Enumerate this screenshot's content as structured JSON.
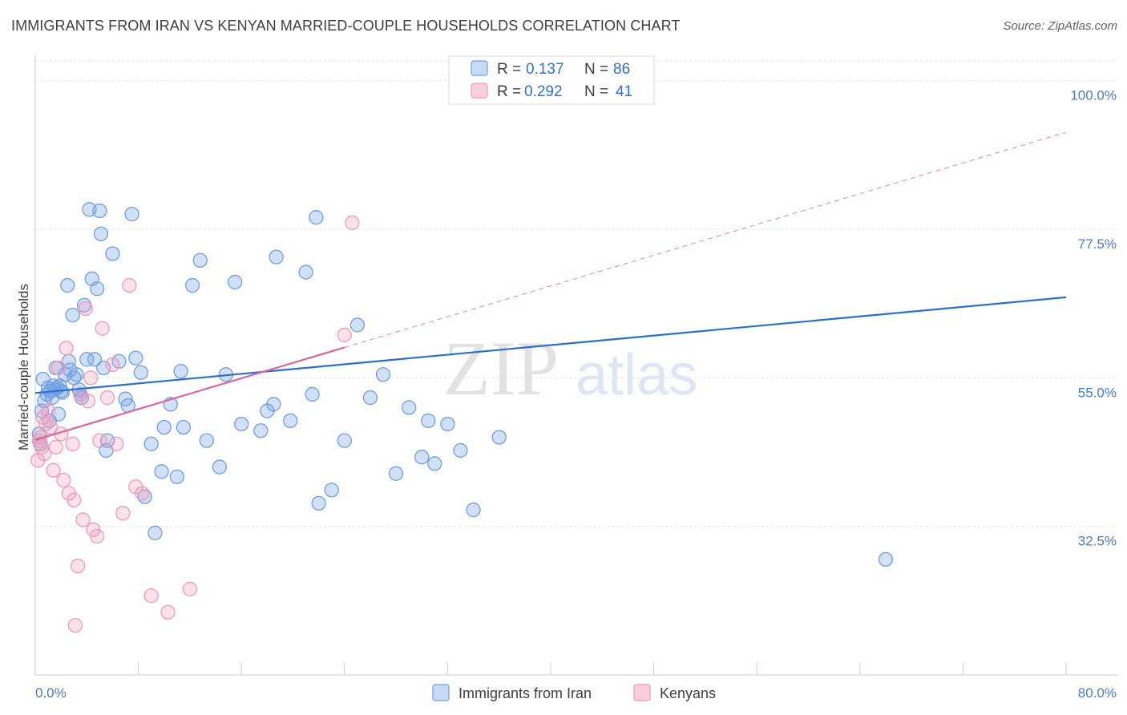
{
  "title": "IMMIGRANTS FROM IRAN VS KENYAN MARRIED-COUPLE HOUSEHOLDS CORRELATION CHART",
  "source": "Source: ZipAtlas.com",
  "watermark": {
    "zip": "ZIP",
    "atlas": "atlas"
  },
  "chart_data": {
    "type": "scatter",
    "title": "IMMIGRANTS FROM IRAN VS KENYAN MARRIED-COUPLE HOUSEHOLDS CORRELATION CHART",
    "xlabel": "",
    "ylabel": "Married-couple Households",
    "xlim": [
      0,
      80
    ],
    "ylim": [
      10,
      103
    ],
    "x_tick_labels": [
      "0.0%",
      "80.0%"
    ],
    "y_ticks": [
      32.5,
      55.0,
      77.5,
      100.0
    ],
    "y_tick_labels": [
      "32.5%",
      "55.0%",
      "77.5%",
      "100.0%"
    ],
    "grid": true,
    "legend": {
      "position": "top-center",
      "entries": [
        {
          "r_label": "R =",
          "r_value": "0.137",
          "n_label": "N =",
          "n_value": "86"
        },
        {
          "r_label": "R =",
          "r_value": "0.292",
          "n_label": "N =",
          "n_value": "41"
        }
      ]
    },
    "series": [
      {
        "name": "Immigrants from Iran",
        "color": "#6f9fe3",
        "line_color": "#2a6fd0",
        "trend": {
          "x": [
            0,
            80
          ],
          "y": [
            52.7,
            67.2
          ]
        },
        "points": [
          [
            0.3,
            46.5
          ],
          [
            0.4,
            45.0
          ],
          [
            0.5,
            50.0
          ],
          [
            0.6,
            54.8
          ],
          [
            0.7,
            51.5
          ],
          [
            0.9,
            52.5
          ],
          [
            1.0,
            53.5
          ],
          [
            1.1,
            48.5
          ],
          [
            1.2,
            53.0
          ],
          [
            1.3,
            52.0
          ],
          [
            1.4,
            53.8
          ],
          [
            1.5,
            53.2
          ],
          [
            1.6,
            56.5
          ],
          [
            1.7,
            53.5
          ],
          [
            1.8,
            49.5
          ],
          [
            1.9,
            53.8
          ],
          [
            2.0,
            53.0
          ],
          [
            2.1,
            52.8
          ],
          [
            2.3,
            55.5
          ],
          [
            2.5,
            69.0
          ],
          [
            2.6,
            57.5
          ],
          [
            2.7,
            56.2
          ],
          [
            2.9,
            64.5
          ],
          [
            3.0,
            55.0
          ],
          [
            3.2,
            55.5
          ],
          [
            3.4,
            53.2
          ],
          [
            3.6,
            52.0
          ],
          [
            3.8,
            66.0
          ],
          [
            4.0,
            57.8
          ],
          [
            4.2,
            80.5
          ],
          [
            4.4,
            70.0
          ],
          [
            4.6,
            57.8
          ],
          [
            4.8,
            68.5
          ],
          [
            5.0,
            80.3
          ],
          [
            5.1,
            76.8
          ],
          [
            5.3,
            56.5
          ],
          [
            5.5,
            44.0
          ],
          [
            5.6,
            45.5
          ],
          [
            6.0,
            73.8
          ],
          [
            6.5,
            57.5
          ],
          [
            7.0,
            51.8
          ],
          [
            7.2,
            50.8
          ],
          [
            7.5,
            79.8
          ],
          [
            7.8,
            58.0
          ],
          [
            8.2,
            55.8
          ],
          [
            8.5,
            37.0
          ],
          [
            9.0,
            45.0
          ],
          [
            9.3,
            31.5
          ],
          [
            9.8,
            40.8
          ],
          [
            10.5,
            51.0
          ],
          [
            11.0,
            40.0
          ],
          [
            11.3,
            56.0
          ],
          [
            11.5,
            47.5
          ],
          [
            12.2,
            69.0
          ],
          [
            12.8,
            72.8
          ],
          [
            13.3,
            45.5
          ],
          [
            14.3,
            41.5
          ],
          [
            14.8,
            55.5
          ],
          [
            15.5,
            69.5
          ],
          [
            16.0,
            48.0
          ],
          [
            17.5,
            47.0
          ],
          [
            18.0,
            50.0
          ],
          [
            18.7,
            73.3
          ],
          [
            19.8,
            48.5
          ],
          [
            21.0,
            71.0
          ],
          [
            21.5,
            52.5
          ],
          [
            22.0,
            36.0
          ],
          [
            23.0,
            38.0
          ],
          [
            24.0,
            45.5
          ],
          [
            25.0,
            63.0
          ],
          [
            26.0,
            52.0
          ],
          [
            27.0,
            55.5
          ],
          [
            28.0,
            40.5
          ],
          [
            29.0,
            50.5
          ],
          [
            30.0,
            43.0
          ],
          [
            31.0,
            42.0
          ],
          [
            32.0,
            48.0
          ],
          [
            33.0,
            44.0
          ],
          [
            34.0,
            35.0
          ],
          [
            36.0,
            46.0
          ],
          [
            18.5,
            51.0
          ],
          [
            30.5,
            48.5
          ],
          [
            66.0,
            27.5
          ],
          [
            3.5,
            52.5
          ],
          [
            10.0,
            47.5
          ],
          [
            21.8,
            79.3
          ]
        ]
      },
      {
        "name": "Kenyans",
        "color": "#f09ab8",
        "line_color": "#e0649a",
        "trend": {
          "x": [
            0,
            24
          ],
          "y": [
            45.6,
            59.6
          ]
        },
        "trend_dashed": {
          "x": [
            24,
            80
          ],
          "y": [
            59.6,
            92.2
          ]
        },
        "points": [
          [
            0.2,
            42.5
          ],
          [
            0.3,
            45.5
          ],
          [
            0.4,
            46.0
          ],
          [
            0.5,
            44.5
          ],
          [
            0.6,
            49.0
          ],
          [
            0.7,
            43.5
          ],
          [
            0.8,
            48.0
          ],
          [
            1.0,
            50.0
          ],
          [
            1.2,
            47.5
          ],
          [
            1.4,
            41.0
          ],
          [
            1.6,
            44.5
          ],
          [
            1.8,
            56.5
          ],
          [
            2.0,
            46.5
          ],
          [
            2.2,
            39.5
          ],
          [
            2.4,
            59.5
          ],
          [
            2.6,
            37.5
          ],
          [
            2.9,
            45.0
          ],
          [
            3.0,
            36.5
          ],
          [
            3.1,
            17.5
          ],
          [
            3.3,
            26.5
          ],
          [
            3.5,
            52.5
          ],
          [
            3.7,
            33.5
          ],
          [
            3.9,
            65.5
          ],
          [
            4.1,
            51.5
          ],
          [
            4.3,
            55.0
          ],
          [
            4.5,
            32.0
          ],
          [
            4.8,
            31.0
          ],
          [
            5.0,
            45.5
          ],
          [
            5.2,
            62.5
          ],
          [
            5.6,
            52.0
          ],
          [
            6.0,
            57.0
          ],
          [
            6.3,
            45.0
          ],
          [
            6.8,
            34.5
          ],
          [
            7.3,
            69.0
          ],
          [
            7.8,
            38.5
          ],
          [
            8.3,
            37.5
          ],
          [
            9.0,
            22.0
          ],
          [
            10.3,
            19.5
          ],
          [
            12.0,
            23.0
          ],
          [
            24.6,
            78.5
          ],
          [
            24.0,
            61.5
          ]
        ]
      }
    ]
  },
  "bottom_legend": [
    "Immigrants from Iran",
    "Kenyans"
  ]
}
